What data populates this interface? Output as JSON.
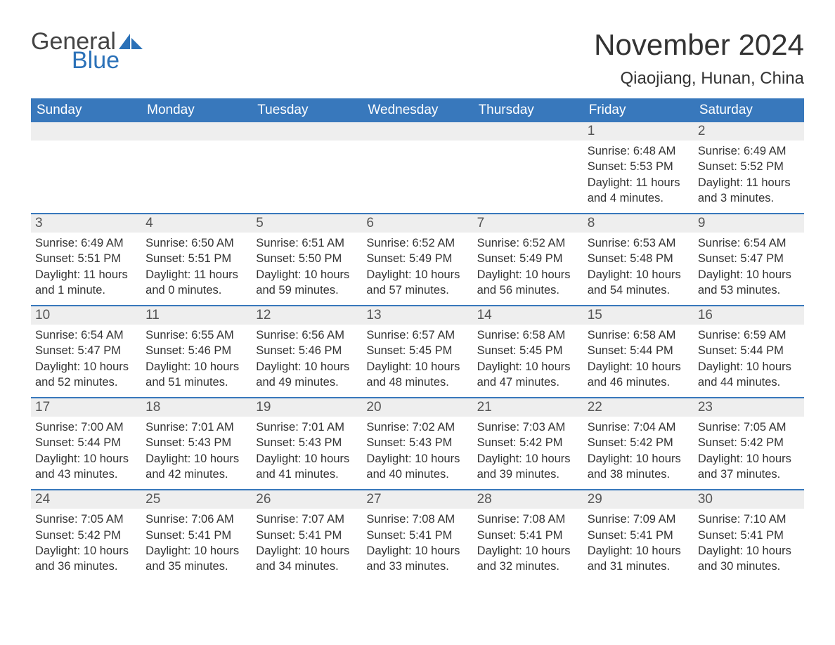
{
  "logo": {
    "general": "General",
    "blue": "Blue"
  },
  "title": "November 2024",
  "location": "Qiaojiang, Hunan, China",
  "colors": {
    "header_bg": "#3878bc",
    "header_text": "#ffffff",
    "daynum_bg": "#eeeeee",
    "rule": "#3878bc",
    "body_text": "#333333",
    "logo_blue": "#2b71b8"
  },
  "day_headers": [
    "Sunday",
    "Monday",
    "Tuesday",
    "Wednesday",
    "Thursday",
    "Friday",
    "Saturday"
  ],
  "weeks": [
    [
      null,
      null,
      null,
      null,
      null,
      {
        "n": "1",
        "sunrise": "Sunrise: 6:48 AM",
        "sunset": "Sunset: 5:53 PM",
        "daylight": "Daylight: 11 hours and 4 minutes."
      },
      {
        "n": "2",
        "sunrise": "Sunrise: 6:49 AM",
        "sunset": "Sunset: 5:52 PM",
        "daylight": "Daylight: 11 hours and 3 minutes."
      }
    ],
    [
      {
        "n": "3",
        "sunrise": "Sunrise: 6:49 AM",
        "sunset": "Sunset: 5:51 PM",
        "daylight": "Daylight: 11 hours and 1 minute."
      },
      {
        "n": "4",
        "sunrise": "Sunrise: 6:50 AM",
        "sunset": "Sunset: 5:51 PM",
        "daylight": "Daylight: 11 hours and 0 minutes."
      },
      {
        "n": "5",
        "sunrise": "Sunrise: 6:51 AM",
        "sunset": "Sunset: 5:50 PM",
        "daylight": "Daylight: 10 hours and 59 minutes."
      },
      {
        "n": "6",
        "sunrise": "Sunrise: 6:52 AM",
        "sunset": "Sunset: 5:49 PM",
        "daylight": "Daylight: 10 hours and 57 minutes."
      },
      {
        "n": "7",
        "sunrise": "Sunrise: 6:52 AM",
        "sunset": "Sunset: 5:49 PM",
        "daylight": "Daylight: 10 hours and 56 minutes."
      },
      {
        "n": "8",
        "sunrise": "Sunrise: 6:53 AM",
        "sunset": "Sunset: 5:48 PM",
        "daylight": "Daylight: 10 hours and 54 minutes."
      },
      {
        "n": "9",
        "sunrise": "Sunrise: 6:54 AM",
        "sunset": "Sunset: 5:47 PM",
        "daylight": "Daylight: 10 hours and 53 minutes."
      }
    ],
    [
      {
        "n": "10",
        "sunrise": "Sunrise: 6:54 AM",
        "sunset": "Sunset: 5:47 PM",
        "daylight": "Daylight: 10 hours and 52 minutes."
      },
      {
        "n": "11",
        "sunrise": "Sunrise: 6:55 AM",
        "sunset": "Sunset: 5:46 PM",
        "daylight": "Daylight: 10 hours and 51 minutes."
      },
      {
        "n": "12",
        "sunrise": "Sunrise: 6:56 AM",
        "sunset": "Sunset: 5:46 PM",
        "daylight": "Daylight: 10 hours and 49 minutes."
      },
      {
        "n": "13",
        "sunrise": "Sunrise: 6:57 AM",
        "sunset": "Sunset: 5:45 PM",
        "daylight": "Daylight: 10 hours and 48 minutes."
      },
      {
        "n": "14",
        "sunrise": "Sunrise: 6:58 AM",
        "sunset": "Sunset: 5:45 PM",
        "daylight": "Daylight: 10 hours and 47 minutes."
      },
      {
        "n": "15",
        "sunrise": "Sunrise: 6:58 AM",
        "sunset": "Sunset: 5:44 PM",
        "daylight": "Daylight: 10 hours and 46 minutes."
      },
      {
        "n": "16",
        "sunrise": "Sunrise: 6:59 AM",
        "sunset": "Sunset: 5:44 PM",
        "daylight": "Daylight: 10 hours and 44 minutes."
      }
    ],
    [
      {
        "n": "17",
        "sunrise": "Sunrise: 7:00 AM",
        "sunset": "Sunset: 5:44 PM",
        "daylight": "Daylight: 10 hours and 43 minutes."
      },
      {
        "n": "18",
        "sunrise": "Sunrise: 7:01 AM",
        "sunset": "Sunset: 5:43 PM",
        "daylight": "Daylight: 10 hours and 42 minutes."
      },
      {
        "n": "19",
        "sunrise": "Sunrise: 7:01 AM",
        "sunset": "Sunset: 5:43 PM",
        "daylight": "Daylight: 10 hours and 41 minutes."
      },
      {
        "n": "20",
        "sunrise": "Sunrise: 7:02 AM",
        "sunset": "Sunset: 5:43 PM",
        "daylight": "Daylight: 10 hours and 40 minutes."
      },
      {
        "n": "21",
        "sunrise": "Sunrise: 7:03 AM",
        "sunset": "Sunset: 5:42 PM",
        "daylight": "Daylight: 10 hours and 39 minutes."
      },
      {
        "n": "22",
        "sunrise": "Sunrise: 7:04 AM",
        "sunset": "Sunset: 5:42 PM",
        "daylight": "Daylight: 10 hours and 38 minutes."
      },
      {
        "n": "23",
        "sunrise": "Sunrise: 7:05 AM",
        "sunset": "Sunset: 5:42 PM",
        "daylight": "Daylight: 10 hours and 37 minutes."
      }
    ],
    [
      {
        "n": "24",
        "sunrise": "Sunrise: 7:05 AM",
        "sunset": "Sunset: 5:42 PM",
        "daylight": "Daylight: 10 hours and 36 minutes."
      },
      {
        "n": "25",
        "sunrise": "Sunrise: 7:06 AM",
        "sunset": "Sunset: 5:41 PM",
        "daylight": "Daylight: 10 hours and 35 minutes."
      },
      {
        "n": "26",
        "sunrise": "Sunrise: 7:07 AM",
        "sunset": "Sunset: 5:41 PM",
        "daylight": "Daylight: 10 hours and 34 minutes."
      },
      {
        "n": "27",
        "sunrise": "Sunrise: 7:08 AM",
        "sunset": "Sunset: 5:41 PM",
        "daylight": "Daylight: 10 hours and 33 minutes."
      },
      {
        "n": "28",
        "sunrise": "Sunrise: 7:08 AM",
        "sunset": "Sunset: 5:41 PM",
        "daylight": "Daylight: 10 hours and 32 minutes."
      },
      {
        "n": "29",
        "sunrise": "Sunrise: 7:09 AM",
        "sunset": "Sunset: 5:41 PM",
        "daylight": "Daylight: 10 hours and 31 minutes."
      },
      {
        "n": "30",
        "sunrise": "Sunrise: 7:10 AM",
        "sunset": "Sunset: 5:41 PM",
        "daylight": "Daylight: 10 hours and 30 minutes."
      }
    ]
  ]
}
